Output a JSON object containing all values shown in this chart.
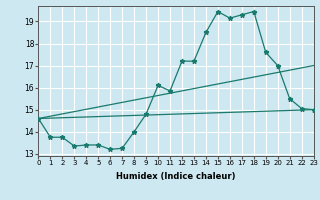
{
  "xlabel": "Humidex (Indice chaleur)",
  "bg_color": "#cde8f0",
  "line_color": "#1a7a6e",
  "grid_color": "#ffffff",
  "x": [
    0,
    1,
    2,
    3,
    4,
    5,
    6,
    7,
    8,
    9,
    10,
    11,
    12,
    13,
    14,
    15,
    16,
    17,
    18,
    19,
    20,
    21,
    22,
    23
  ],
  "line1": [
    14.6,
    13.75,
    13.75,
    13.35,
    13.4,
    13.4,
    13.2,
    13.25,
    14.0,
    14.8,
    16.1,
    15.85,
    17.2,
    17.2,
    18.5,
    19.45,
    19.15,
    19.3,
    19.45,
    17.6,
    17.0,
    15.5,
    15.05,
    15.0
  ],
  "line2_x": [
    0,
    23
  ],
  "line2_y": [
    14.6,
    17.0
  ],
  "line3_x": [
    0,
    23
  ],
  "line3_y": [
    14.6,
    15.0
  ],
  "xlim": [
    0,
    23
  ],
  "ylim": [
    12.9,
    19.7
  ],
  "yticks": [
    13,
    14,
    15,
    16,
    17,
    18,
    19
  ],
  "xticks": [
    0,
    1,
    2,
    3,
    4,
    5,
    6,
    7,
    8,
    9,
    10,
    11,
    12,
    13,
    14,
    15,
    16,
    17,
    18,
    19,
    20,
    21,
    22,
    23
  ]
}
